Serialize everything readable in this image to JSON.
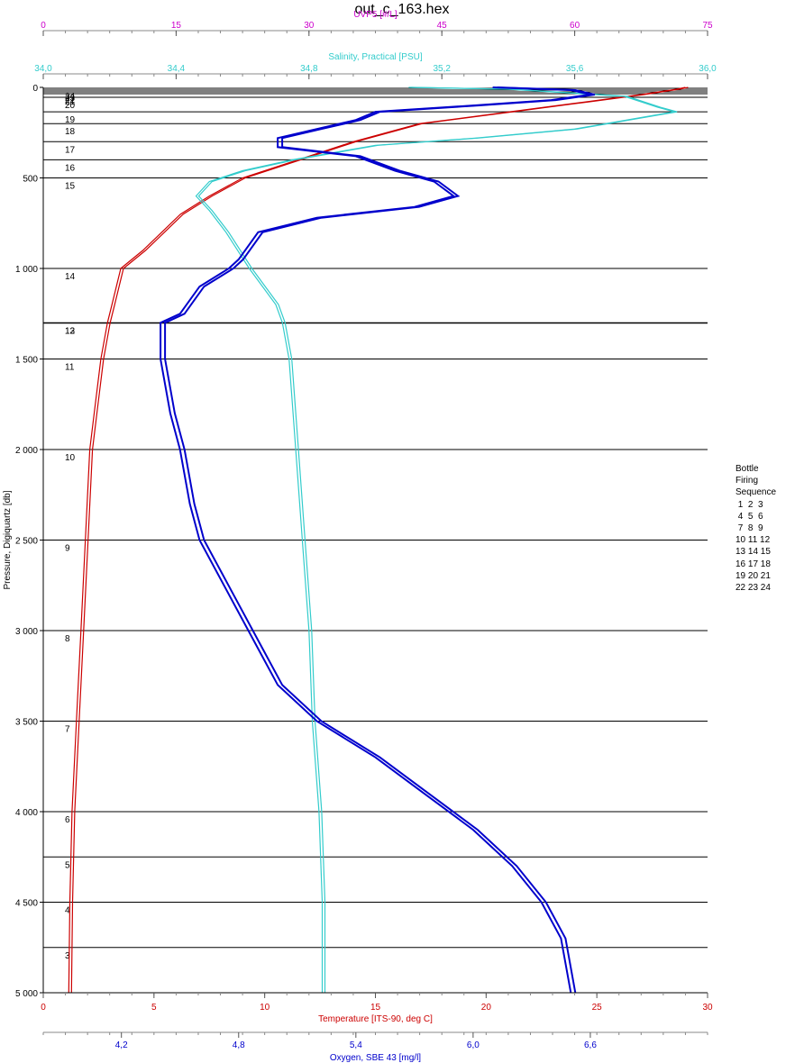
{
  "title": "out_c_163.hex",
  "chart_data": {
    "type": "line",
    "y_axis": {
      "label": "Pressure, Digiquartz [db]",
      "range": [
        0,
        5000
      ],
      "ticks": [
        0,
        500,
        1000,
        1500,
        2000,
        2500,
        3000,
        3500,
        4000,
        4500,
        5000
      ],
      "tick_labels": [
        "0",
        "500",
        "1 000",
        "1 500",
        "2 000",
        "2 500",
        "3 000",
        "3 500",
        "4 000",
        "4 500",
        "5 000"
      ],
      "inverted": true
    },
    "x_axes": [
      {
        "id": "uvp5",
        "label": "UVP5 [#/L]",
        "position": "top-1",
        "color": "#cc00cc",
        "range": [
          0,
          75
        ],
        "ticks": [
          0,
          15,
          30,
          45,
          60,
          75
        ],
        "tick_labels": [
          "0",
          "15",
          "30",
          "45",
          "60",
          "75"
        ]
      },
      {
        "id": "salinity",
        "label": "Salinity, Practical [PSU]",
        "position": "top-2",
        "color": "#33cccc",
        "range": [
          34.0,
          36.0
        ],
        "ticks": [
          34.0,
          34.4,
          34.8,
          35.2,
          35.6,
          36.0
        ],
        "tick_labels": [
          "34,0",
          "34,4",
          "34,8",
          "35,2",
          "35,6",
          "36,0"
        ]
      },
      {
        "id": "temperature",
        "label": "Temperature [ITS-90, deg C]",
        "position": "bottom-1",
        "color": "#cc0000",
        "range": [
          0,
          30
        ],
        "ticks": [
          0,
          5,
          10,
          15,
          20,
          25,
          30
        ],
        "tick_labels": [
          "0",
          "5",
          "10",
          "15",
          "20",
          "25",
          "30"
        ]
      },
      {
        "id": "oxygen",
        "label": "Oxygen, SBE 43 [mg/l]",
        "position": "bottom-2",
        "color": "#0000cc",
        "range": [
          3.8,
          7.2
        ],
        "ticks": [
          4.2,
          4.8,
          5.4,
          6.0,
          6.6
        ],
        "tick_labels": [
          "4,2",
          "4,8",
          "5,4",
          "6,0",
          "6,6"
        ]
      }
    ],
    "bottle_lines": [
      {
        "label": "24",
        "p": 5
      },
      {
        "label": "23",
        "p": 15
      },
      {
        "label": "22",
        "p": 25
      },
      {
        "label": "21",
        "p": 35
      },
      {
        "label": "20",
        "p": 55
      },
      {
        "label": "19",
        "p": 135
      },
      {
        "label": "18",
        "p": 200
      },
      {
        "label": "17",
        "p": 300
      },
      {
        "label": "16",
        "p": 400
      },
      {
        "label": "15",
        "p": 500
      },
      {
        "label": "14",
        "p": 1000
      },
      {
        "label": "13",
        "p": 1300
      },
      {
        "label": "12",
        "p": 1302
      },
      {
        "label": "11",
        "p": 1500
      },
      {
        "label": "10",
        "p": 2000
      },
      {
        "label": "9",
        "p": 2500
      },
      {
        "label": "8",
        "p": 3000
      },
      {
        "label": "7",
        "p": 3500
      },
      {
        "label": "6",
        "p": 4000
      },
      {
        "label": "5",
        "p": 4250
      },
      {
        "label": "4",
        "p": 4500
      },
      {
        "label": "3",
        "p": 4750
      }
    ],
    "series": [
      {
        "name": "Temperature [ITS-90, deg C]",
        "axis": "temperature",
        "color": "#cc0000",
        "points": [
          [
            29.0,
            0
          ],
          [
            28.6,
            10
          ],
          [
            27.0,
            40
          ],
          [
            24.5,
            80
          ],
          [
            22.0,
            120
          ],
          [
            19.5,
            160
          ],
          [
            17.0,
            200
          ],
          [
            14.0,
            300
          ],
          [
            11.5,
            400
          ],
          [
            9.0,
            500
          ],
          [
            7.5,
            600
          ],
          [
            6.2,
            700
          ],
          [
            4.5,
            900
          ],
          [
            3.5,
            1000
          ],
          [
            3.1,
            1200
          ],
          [
            2.9,
            1300
          ],
          [
            2.6,
            1500
          ],
          [
            2.3,
            1800
          ],
          [
            2.1,
            2000
          ],
          [
            1.9,
            2500
          ],
          [
            1.7,
            3000
          ],
          [
            1.5,
            3500
          ],
          [
            1.3,
            4000
          ],
          [
            1.2,
            4500
          ],
          [
            1.15,
            5000
          ]
        ]
      },
      {
        "name": "Salinity, Practical [PSU]",
        "axis": "salinity",
        "color": "#33cccc",
        "points": [
          [
            35.1,
            0
          ],
          [
            35.4,
            10
          ],
          [
            35.75,
            50
          ],
          [
            35.85,
            110
          ],
          [
            35.9,
            135
          ],
          [
            35.6,
            230
          ],
          [
            35.3,
            280
          ],
          [
            35.0,
            320
          ],
          [
            34.75,
            400
          ],
          [
            34.6,
            460
          ],
          [
            34.5,
            520
          ],
          [
            34.46,
            600
          ],
          [
            34.5,
            680
          ],
          [
            34.55,
            800
          ],
          [
            34.62,
            1000
          ],
          [
            34.7,
            1200
          ],
          [
            34.72,
            1300
          ],
          [
            34.74,
            1500
          ],
          [
            34.76,
            2000
          ],
          [
            34.78,
            2500
          ],
          [
            34.8,
            3000
          ],
          [
            34.81,
            3500
          ],
          [
            34.83,
            4000
          ],
          [
            34.84,
            4500
          ],
          [
            34.84,
            5000
          ]
        ]
      },
      {
        "name": "Oxygen, SBE 43 [mg/l]",
        "axis": "oxygen",
        "color": "#0000cc",
        "points": [
          [
            6.1,
            0
          ],
          [
            6.5,
            15
          ],
          [
            6.6,
            40
          ],
          [
            6.4,
            70
          ],
          [
            6.0,
            100
          ],
          [
            5.5,
            135
          ],
          [
            5.4,
            180
          ],
          [
            5.2,
            230
          ],
          [
            5.0,
            280
          ],
          [
            5.0,
            330
          ],
          [
            5.4,
            380
          ],
          [
            5.6,
            460
          ],
          [
            5.8,
            520
          ],
          [
            5.9,
            600
          ],
          [
            5.7,
            660
          ],
          [
            5.2,
            720
          ],
          [
            4.9,
            800
          ],
          [
            4.8,
            950
          ],
          [
            4.75,
            1000
          ],
          [
            4.6,
            1100
          ],
          [
            4.5,
            1250
          ],
          [
            4.4,
            1300
          ],
          [
            4.4,
            1500
          ],
          [
            4.45,
            1800
          ],
          [
            4.5,
            2000
          ],
          [
            4.55,
            2300
          ],
          [
            4.6,
            2500
          ],
          [
            4.75,
            2800
          ],
          [
            4.9,
            3100
          ],
          [
            5.0,
            3300
          ],
          [
            5.2,
            3500
          ],
          [
            5.5,
            3700
          ],
          [
            5.75,
            3900
          ],
          [
            6.0,
            4100
          ],
          [
            6.2,
            4300
          ],
          [
            6.35,
            4500
          ],
          [
            6.45,
            4700
          ],
          [
            6.5,
            5000
          ]
        ]
      }
    ]
  },
  "legend": {
    "title_lines": [
      "Bottle",
      "Firing",
      "Sequence"
    ],
    "rows": [
      " 1  2  3",
      " 4  5  6",
      " 7  8  9",
      "10 11 12",
      "13 14 15",
      "16 17 18",
      "19 20 21",
      "22 23 24"
    ]
  }
}
